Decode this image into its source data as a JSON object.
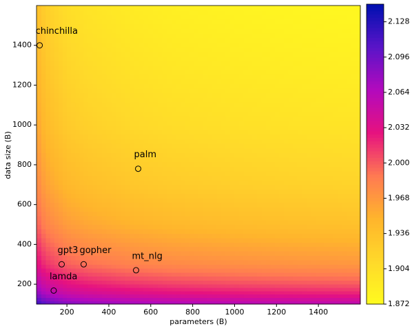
{
  "chart_data": {
    "type": "contour",
    "x_label": "parameters (B)",
    "y_label": "data size (B)",
    "xlim": [
      55,
      1600
    ],
    "ylim": [
      100,
      1600
    ],
    "xticks": [
      200,
      400,
      600,
      800,
      1000,
      1200,
      1400
    ],
    "yticks": [
      200,
      400,
      600,
      800,
      1000,
      1200,
      1400
    ],
    "x_grid": [
      55,
      100,
      200,
      300,
      500,
      700,
      1000,
      1300,
      1600
    ],
    "y_grid": [
      100,
      150,
      200,
      300,
      500,
      700,
      1000,
      1300,
      1600
    ],
    "z": [
      [
        2.123,
        2.106,
        2.09,
        2.083,
        2.075,
        2.07,
        2.066,
        2.063,
        2.061
      ],
      [
        2.086,
        2.069,
        2.053,
        2.046,
        2.038,
        2.033,
        2.029,
        2.026,
        2.024
      ],
      [
        2.063,
        2.046,
        2.03,
        2.023,
        2.015,
        2.01,
        2.006,
        2.003,
        2.001
      ],
      [
        2.032,
        2.015,
        1.999,
        1.992,
        1.984,
        1.979,
        1.975,
        1.972,
        1.97
      ],
      [
        1.999,
        1.982,
        1.966,
        1.959,
        1.951,
        1.946,
        1.942,
        1.939,
        1.937
      ],
      [
        1.979,
        1.962,
        1.946,
        1.939,
        1.931,
        1.926,
        1.922,
        1.919,
        1.917
      ],
      [
        1.96,
        1.943,
        1.927,
        1.92,
        1.912,
        1.907,
        1.903,
        1.9,
        1.898
      ],
      [
        1.948,
        1.931,
        1.915,
        1.908,
        1.9,
        1.895,
        1.891,
        1.888,
        1.886
      ],
      [
        1.938,
        1.921,
        1.905,
        1.898,
        1.89,
        1.885,
        1.881,
        1.878,
        1.876
      ]
    ],
    "clim": [
      1.872,
      2.144
    ],
    "colorbar_ticks": [
      1.872,
      1.904,
      1.936,
      1.968,
      2.0,
      2.032,
      2.064,
      2.096,
      2.128
    ],
    "colors": [
      "#fffb1f",
      "#ffd92a",
      "#ffb52c",
      "#ff7a52",
      "#e6127f",
      "#b30abd",
      "#5a14c8",
      "#0010b0"
    ],
    "points": [
      {
        "label": "chinchilla",
        "x": 70,
        "y": 1400
      },
      {
        "label": "palm",
        "x": 540,
        "y": 780
      },
      {
        "label": "gpt3",
        "x": 175,
        "y": 300
      },
      {
        "label": "gopher",
        "x": 280,
        "y": 300
      },
      {
        "label": "mt_nlg",
        "x": 530,
        "y": 270
      },
      {
        "label": "lamda",
        "x": 137,
        "y": 168
      }
    ]
  }
}
